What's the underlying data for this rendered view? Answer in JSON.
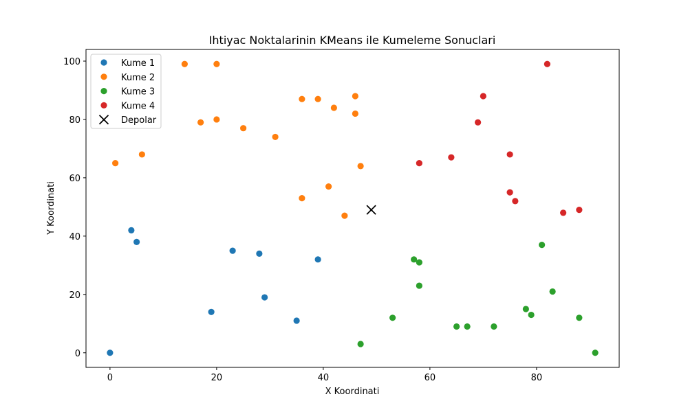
{
  "chart_data": {
    "type": "scatter",
    "title": "Ihtiyac Noktalarinin KMeans ile Kumeleme Sonuclari",
    "xlabel": "X Koordinati",
    "ylabel": "Y Koordinati",
    "xlim": [
      -4.5,
      95.5
    ],
    "ylim": [
      -5,
      104
    ],
    "xticks": [
      0,
      20,
      40,
      60,
      80
    ],
    "yticks": [
      0,
      20,
      40,
      60,
      80,
      100
    ],
    "grid": false,
    "legend_position": "top-left",
    "series": [
      {
        "name": "Kume 1",
        "color": "#1f77b4",
        "marker": "circle",
        "points": [
          [
            0,
            0
          ],
          [
            4,
            42
          ],
          [
            5,
            38
          ],
          [
            19,
            14
          ],
          [
            23,
            35
          ],
          [
            28,
            34
          ],
          [
            29,
            19
          ],
          [
            35,
            11
          ],
          [
            39,
            32
          ]
        ]
      },
      {
        "name": "Kume 2",
        "color": "#ff7f0e",
        "marker": "circle",
        "points": [
          [
            1,
            65
          ],
          [
            6,
            68
          ],
          [
            14,
            99
          ],
          [
            17,
            79
          ],
          [
            20,
            99
          ],
          [
            20,
            80
          ],
          [
            25,
            77
          ],
          [
            31,
            74
          ],
          [
            36,
            87
          ],
          [
            36,
            53
          ],
          [
            39,
            87
          ],
          [
            41,
            57
          ],
          [
            42,
            84
          ],
          [
            44,
            47
          ],
          [
            46,
            88
          ],
          [
            46,
            82
          ],
          [
            47,
            64
          ]
        ]
      },
      {
        "name": "Kume 3",
        "color": "#2ca02c",
        "marker": "circle",
        "points": [
          [
            47,
            3
          ],
          [
            53,
            12
          ],
          [
            57,
            32
          ],
          [
            58,
            31
          ],
          [
            58,
            23
          ],
          [
            65,
            9
          ],
          [
            67,
            9
          ],
          [
            72,
            9
          ],
          [
            78,
            15
          ],
          [
            79,
            13
          ],
          [
            81,
            37
          ],
          [
            83,
            21
          ],
          [
            88,
            12
          ],
          [
            91,
            0
          ]
        ]
      },
      {
        "name": "Kume 4",
        "color": "#d62728",
        "marker": "circle",
        "points": [
          [
            58,
            65
          ],
          [
            64,
            67
          ],
          [
            69,
            79
          ],
          [
            70,
            88
          ],
          [
            75,
            68
          ],
          [
            75,
            55
          ],
          [
            76,
            52
          ],
          [
            82,
            99
          ],
          [
            85,
            48
          ],
          [
            88,
            49
          ]
        ]
      },
      {
        "name": "Depolar",
        "color": "#000000",
        "marker": "x",
        "points": [
          [
            49,
            49
          ]
        ]
      }
    ]
  }
}
